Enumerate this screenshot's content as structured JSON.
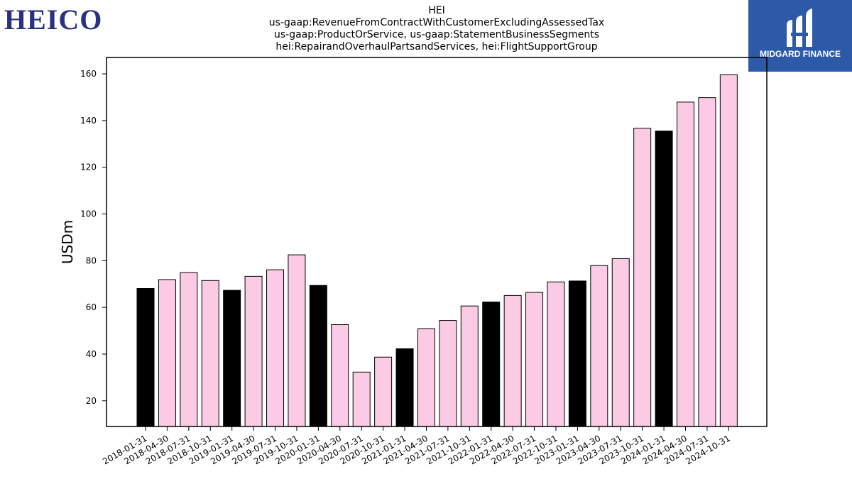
{
  "brand": {
    "left_logo_text": "HEICO",
    "right_logo_text": "MIDGARD FINANCE",
    "accent_color": "#2d5aa8",
    "left_logo_color": "#2a3280"
  },
  "chart_data": {
    "type": "bar",
    "title_lines": [
      "HEI",
      "us-gaap:RevenueFromContractWithCustomerExcludingAssessedTax",
      "us-gaap:ProductOrService, us-gaap:StatementBusinessSegments",
      "hei:RepairandOverhaulPartsandServices, hei:FlightSupportGroup"
    ],
    "xlabel": "",
    "ylabel": "USDm",
    "ylim": [
      9,
      167
    ],
    "yticks": [
      20,
      40,
      60,
      80,
      100,
      120,
      140,
      160
    ],
    "grid": false,
    "categories": [
      "2018-01-31",
      "2018-04-30",
      "2018-07-31",
      "2018-10-31",
      "2019-01-31",
      "2019-04-30",
      "2019-07-31",
      "2019-10-31",
      "2020-01-31",
      "2020-04-30",
      "2020-07-31",
      "2020-10-31",
      "2021-01-31",
      "2021-04-30",
      "2021-07-31",
      "2021-10-31",
      "2022-01-31",
      "2022-04-30",
      "2022-07-31",
      "2022-10-31",
      "2023-01-31",
      "2023-04-30",
      "2023-07-31",
      "2023-10-31",
      "2024-01-31",
      "2024-04-30",
      "2024-07-31",
      "2024-10-31"
    ],
    "values": [
      68.1,
      71.9,
      74.9,
      71.5,
      67.3,
      73.3,
      76.1,
      82.5,
      69.4,
      52.6,
      32.3,
      38.7,
      42.3,
      50.9,
      54.4,
      60.6,
      62.3,
      65.1,
      66.4,
      70.9,
      71.3,
      77.9,
      80.9,
      136.7,
      135.5,
      147.9,
      149.8,
      159.6
    ],
    "bar_colors": {
      "q1_color": "#000000",
      "other_color": "#fbcae4",
      "edge_color": "#000000"
    }
  }
}
